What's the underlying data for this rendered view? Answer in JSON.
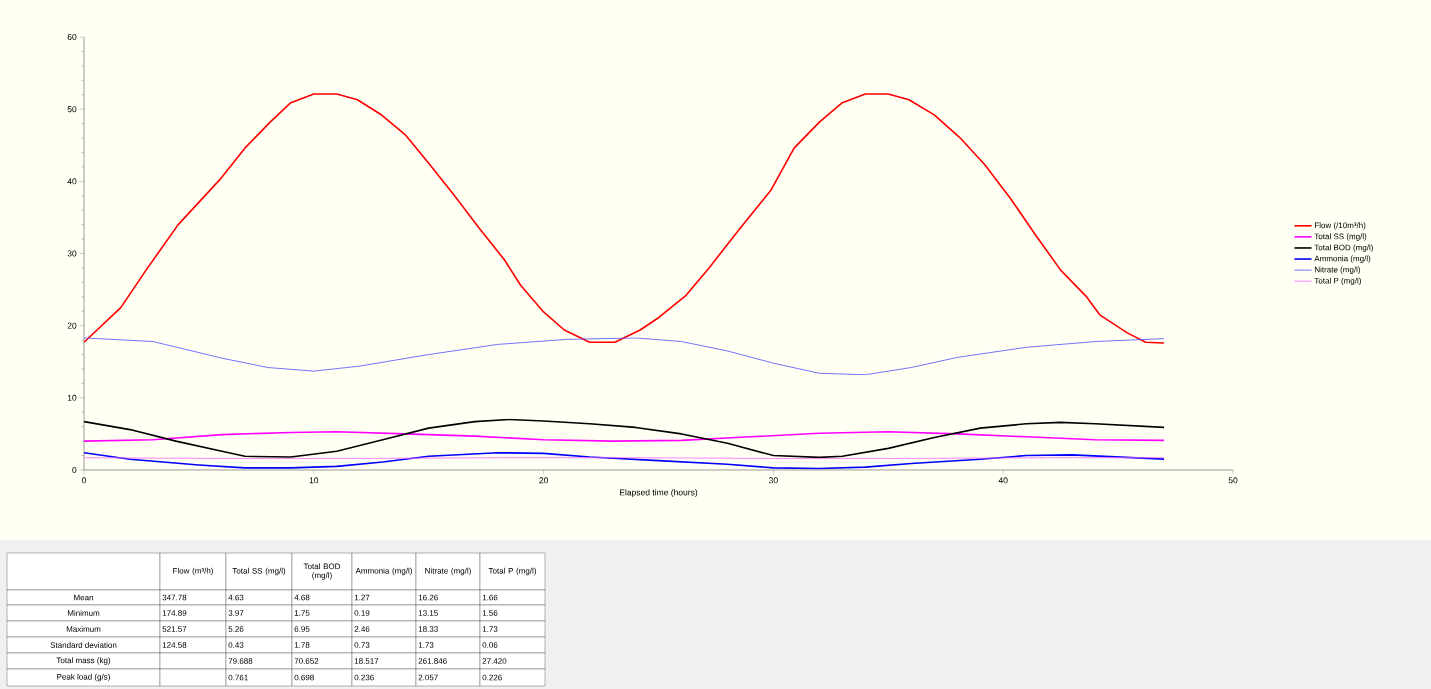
{
  "chart_data": {
    "type": "line",
    "xlabel": "Elapsed time (hours)",
    "xlim": [
      0,
      50
    ],
    "xticks": [
      0,
      10,
      20,
      30,
      40,
      50
    ],
    "ylim": [
      0,
      60
    ],
    "yticks": [
      0,
      10,
      20,
      30,
      40,
      50,
      60
    ],
    "legend": "right",
    "series": [
      {
        "name": "Flow (/10m³/h)",
        "color": "#ff0000",
        "x": [
          0,
          1.6,
          2.7,
          4.1,
          5.9,
          7,
          8.1,
          9,
          10,
          11,
          11.9,
          12.9,
          14,
          15,
          16.1,
          17.2,
          18.3,
          19,
          20,
          20.9,
          22,
          23.1,
          24.2,
          25,
          26.2,
          27.2,
          28.5,
          29.9,
          30.9,
          32,
          33,
          34,
          35,
          35.9,
          37,
          38.1,
          39.2,
          40.3,
          41.4,
          42.5,
          43.6,
          44.2,
          45.4,
          46.2,
          47
        ],
        "values": [
          17.7,
          22.5,
          27.7,
          34,
          40.2,
          44.6,
          48.2,
          50.9,
          52.1,
          52.1,
          51.3,
          49.3,
          46.4,
          42.5,
          38.1,
          33.5,
          29.1,
          25.6,
          21.9,
          19.4,
          17.7,
          17.7,
          19.4,
          21.1,
          24.2,
          28,
          33.3,
          38.8,
          44.6,
          48.2,
          50.9,
          52.1,
          52.1,
          51.3,
          49.2,
          46.1,
          42.3,
          37.7,
          32.6,
          27.7,
          24.1,
          21.5,
          19,
          17.7,
          17.6
        ]
      },
      {
        "name": "Total SS (mg/l)",
        "color": "#ff00ff",
        "x": [
          0,
          3,
          6,
          9,
          11,
          14,
          17,
          20,
          23,
          26,
          29,
          32,
          35,
          38,
          41,
          44,
          47
        ],
        "values": [
          4.0,
          4.2,
          4.9,
          5.2,
          5.3,
          5.0,
          4.7,
          4.2,
          4.0,
          4.1,
          4.6,
          5.1,
          5.3,
          5.0,
          4.6,
          4.2,
          4.1
        ]
      },
      {
        "name": "Total BOD (mg/l)",
        "color": "#000000",
        "x": [
          0,
          2,
          4,
          6,
          7,
          9,
          11,
          13,
          15,
          17,
          18.5,
          20,
          22,
          24,
          26,
          28,
          30,
          32,
          33,
          35,
          37,
          39,
          41,
          42.5,
          44,
          47
        ],
        "values": [
          6.7,
          5.6,
          4.0,
          2.6,
          1.9,
          1.8,
          2.6,
          4.2,
          5.8,
          6.7,
          7.0,
          6.8,
          6.4,
          5.9,
          5.0,
          3.7,
          2.0,
          1.75,
          1.9,
          3.0,
          4.5,
          5.8,
          6.4,
          6.6,
          6.4,
          5.9
        ]
      },
      {
        "name": "Ammonia (mg/l)",
        "color": "#0000ff",
        "x": [
          0,
          2,
          5,
          7,
          9,
          11,
          13,
          15,
          18,
          20,
          22,
          25,
          28,
          30,
          32,
          34,
          36,
          39,
          41,
          43,
          45,
          47
        ],
        "values": [
          2.4,
          1.5,
          0.7,
          0.3,
          0.3,
          0.5,
          1.1,
          1.9,
          2.4,
          2.3,
          1.8,
          1.3,
          0.8,
          0.3,
          0.2,
          0.4,
          0.9,
          1.5,
          2.0,
          2.1,
          1.8,
          1.5
        ]
      },
      {
        "name": "Nitrate (mg/l)",
        "color": "#5050ff",
        "x": [
          0,
          3,
          6,
          8,
          10,
          12,
          15,
          18,
          21,
          24,
          26,
          28,
          30,
          32,
          34,
          36,
          38,
          41,
          44,
          47
        ],
        "values": [
          18.3,
          17.8,
          15.5,
          14.2,
          13.7,
          14.4,
          16.0,
          17.4,
          18.1,
          18.3,
          17.8,
          16.5,
          14.8,
          13.4,
          13.2,
          14.2,
          15.6,
          17.0,
          17.8,
          18.2
        ]
      },
      {
        "name": "Total P (mg/l)",
        "color": "#ff66ff",
        "x": [
          0,
          6,
          12,
          18,
          24,
          30,
          36,
          42,
          47
        ],
        "values": [
          1.7,
          1.6,
          1.6,
          1.7,
          1.7,
          1.6,
          1.6,
          1.7,
          1.7
        ]
      }
    ],
    "annotations": [
      null,
      "Flow (m³/h)",
      "Total SS (mg/l)",
      "Total BOD (mg/l)",
      "Ammonia (mg/l)",
      "Nitrate (mg/l)",
      "Total P (mg/l)",
      "Mean",
      "347.78",
      "4.63",
      "4.68",
      "1.27",
      "16.26",
      "1.66",
      "Minimum",
      "174.89",
      "3.97",
      "1.75",
      "0.19",
      "13.15",
      "1.56",
      "Maximum",
      "521.57",
      "5.26",
      "6.95",
      "2.46",
      "18.33",
      "1.73",
      "Standard deviation",
      "124.58",
      "0.43",
      "1.78",
      "0.73",
      "1.73",
      "0.06",
      "Total mass (kg)",
      null,
      "79.688",
      "70.652",
      "18.517",
      "261.846",
      "27.420",
      "Peak load (g/s)",
      null,
      "0.761",
      "0.698",
      "0.236",
      "2.057",
      "0.226"
    ]
  }
}
